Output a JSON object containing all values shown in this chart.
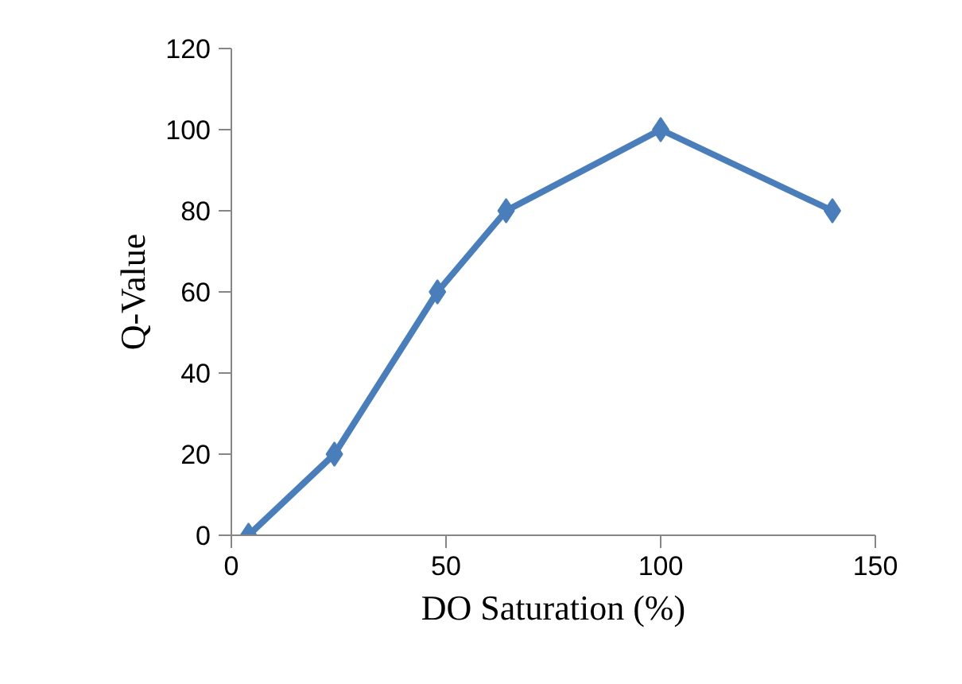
{
  "chart_data": {
    "type": "line",
    "xlabel": "DO Saturation (%)",
    "ylabel": "Q-Value",
    "x": [
      4,
      24,
      48,
      64,
      100,
      140
    ],
    "series": [
      {
        "color": "#4a7ebb",
        "values": [
          0,
          20,
          60,
          80,
          100,
          80
        ]
      }
    ],
    "xlim": [
      0,
      150
    ],
    "xticks": [
      0,
      50,
      100,
      150
    ],
    "ylim": [
      0,
      120
    ],
    "yticks": [
      0,
      20,
      40,
      60,
      80,
      100,
      120
    ],
    "grid": false,
    "marker": "diamond",
    "line_style": "solid"
  }
}
